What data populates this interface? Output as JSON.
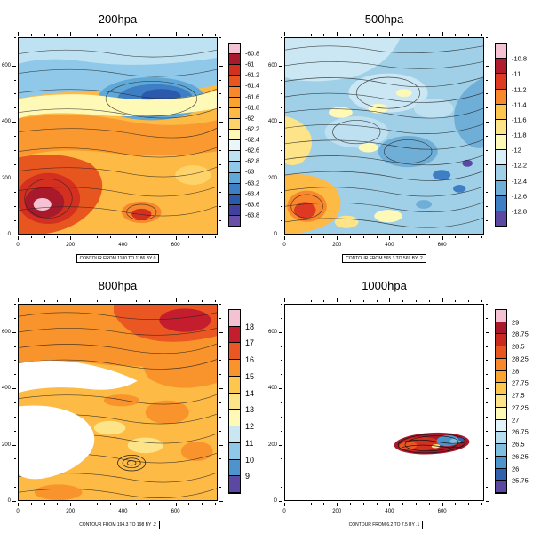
{
  "figure": {
    "background": "#ffffff"
  },
  "chart_data": [
    {
      "type": "heatmap",
      "id": "200hpa",
      "title": "200hpa",
      "contour_note": "CONTOUR FROM 1180 TO 1186 BY 0",
      "axes": {
        "x_max": 760,
        "y_max": 700,
        "minor_step": 50,
        "major_step": 200,
        "x_labels": [
          0,
          200,
          400,
          600
        ],
        "y_labels": [
          0,
          200,
          400,
          600
        ]
      },
      "colorbar": {
        "labels": [
          "-60.8",
          "-61",
          "-61.2",
          "-61.4",
          "-61.6",
          "-61.8",
          "-62",
          "-62.2",
          "-62.4",
          "-62.6",
          "-62.8",
          "-63",
          "-63.2",
          "-63.4",
          "-63.6",
          "-63.8"
        ],
        "colors": [
          "#F4C2D2",
          "#A81A2B",
          "#D33020",
          "#E8561F",
          "#F9872B",
          "#FBA32F",
          "#FDBA45",
          "#FDD36A",
          "#FFF9B8",
          "#EAF7FA",
          "#BFE2F2",
          "#8FC8E8",
          "#5FA8D8",
          "#3D7EC4",
          "#2B5AAC",
          "#41409E",
          "#6A4FA8"
        ]
      }
    },
    {
      "type": "heatmap",
      "id": "500hpa",
      "title": "500hpa",
      "contour_note": "CONTOUR FROM 565.3 TO 569 BY .2",
      "axes": {
        "x_max": 760,
        "y_max": 700,
        "minor_step": 50,
        "major_step": 200,
        "x_labels": [
          0,
          200,
          400,
          600
        ],
        "y_labels": [
          0,
          200,
          400,
          600
        ]
      },
      "colorbar": {
        "labels": [
          "-10.8",
          "-11",
          "-11.2",
          "-11.4",
          "-11.6",
          "-11.8",
          "-12",
          "-12.2",
          "-12.4",
          "-12.6",
          "-12.8"
        ],
        "colors": [
          "#F4C2D2",
          "#B01C2E",
          "#DD3A21",
          "#F9872B",
          "#FDC64F",
          "#FEE488",
          "#FFF9B8",
          "#D9EFF7",
          "#9FD0E8",
          "#6FAED6",
          "#3D7EC4",
          "#5B48A2"
        ]
      }
    },
    {
      "type": "heatmap",
      "id": "800hpa",
      "title": "800hpa",
      "contour_note": "CONTOUR FROM 194.3 TO 198 BY .2",
      "axes": {
        "x_max": 760,
        "y_max": 700,
        "minor_step": 50,
        "major_step": 200,
        "x_labels": [
          0,
          200,
          400,
          600
        ],
        "y_labels": [
          0,
          200,
          400,
          600
        ]
      },
      "colorbar": {
        "labels": [
          "18",
          "17",
          "16",
          "15",
          "14",
          "13",
          "12",
          "11",
          "10",
          "9"
        ],
        "colors": [
          "#F4C2D2",
          "#C41E2E",
          "#EA5722",
          "#F9932B",
          "#FDC64F",
          "#FEE488",
          "#FFF9B8",
          "#C9E6F2",
          "#8FC8E8",
          "#4E94CC",
          "#5B48A2"
        ]
      }
    },
    {
      "type": "heatmap",
      "id": "1000hpa",
      "title": "1000hpa",
      "contour_note": "CONTOUR FROM 6.2 TO 7.5 BY .1",
      "axes": {
        "x_max": 760,
        "y_max": 700,
        "minor_step": 50,
        "major_step": 200,
        "x_labels": [
          0,
          200,
          400,
          600
        ],
        "y_labels": [
          0,
          200,
          400,
          600
        ]
      },
      "colorbar": {
        "labels": [
          "29",
          "28.75",
          "28.5",
          "28.25",
          "28",
          "27.75",
          "27.5",
          "27.25",
          "27",
          "26.75",
          "26.5",
          "26.25",
          "26",
          "25.75"
        ],
        "colors": [
          "#F4C2D2",
          "#A81A2B",
          "#C92A20",
          "#E8561F",
          "#F9872B",
          "#FBA32F",
          "#FDC64F",
          "#FEE488",
          "#FFF9B8",
          "#E2F3F9",
          "#B5DEEE",
          "#7FBFDE",
          "#4E94CC",
          "#3060AE",
          "#5B48A2"
        ]
      }
    }
  ]
}
